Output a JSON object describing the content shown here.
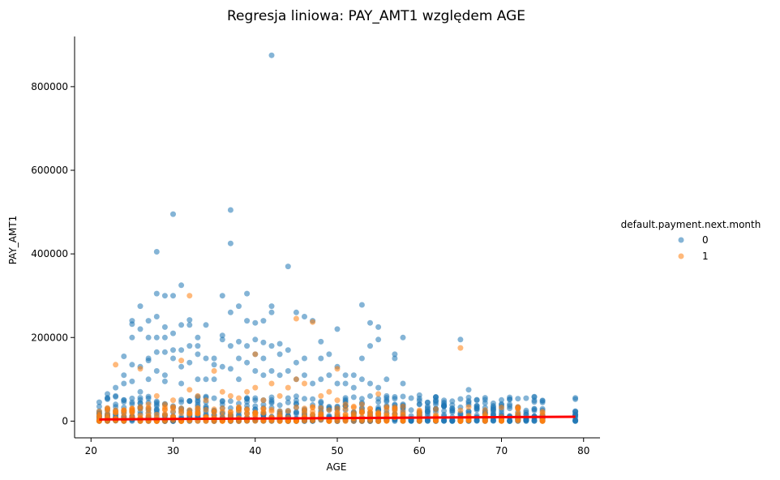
{
  "chart_data": {
    "type": "scatter",
    "title": "Regresja liniowa: PAY_AMT1 względem AGE",
    "xlabel": "AGE",
    "ylabel": "PAY_AMT1",
    "xlim": [
      18,
      82
    ],
    "ylim": [
      -40000,
      920000
    ],
    "xticks": [
      20,
      30,
      40,
      50,
      60,
      70,
      80
    ],
    "yticks": [
      0,
      200000,
      400000,
      600000,
      800000
    ],
    "legend": {
      "title": "default.payment.next.month",
      "placement": "right"
    },
    "colors": {
      "series0": "#1f77b4",
      "series1": "#ff7f0e",
      "regression": "#ff0000"
    },
    "series": [
      {
        "name": "0",
        "x": [
          21,
          21,
          22,
          22,
          22,
          23,
          23,
          23,
          24,
          24,
          24,
          24,
          25,
          25,
          25,
          25,
          25,
          25,
          26,
          26,
          26,
          26,
          27,
          27,
          27,
          27,
          27,
          28,
          28,
          28,
          28,
          28,
          28,
          29,
          29,
          29,
          29,
          29,
          29,
          30,
          30,
          30,
          30,
          30,
          31,
          31,
          31,
          31,
          31,
          32,
          32,
          32,
          32,
          33,
          33,
          33,
          33,
          34,
          34,
          34,
          35,
          35,
          35,
          36,
          36,
          36,
          36,
          37,
          37,
          37,
          37,
          37,
          38,
          38,
          38,
          38,
          39,
          39,
          39,
          39,
          40,
          40,
          40,
          40,
          41,
          41,
          41,
          41,
          42,
          42,
          42,
          42,
          42,
          43,
          43,
          43,
          44,
          44,
          44,
          45,
          45,
          45,
          46,
          46,
          46,
          47,
          47,
          48,
          48,
          48,
          49,
          49,
          50,
          50,
          50,
          51,
          51,
          52,
          52,
          53,
          53,
          53,
          54,
          54,
          54,
          55,
          55,
          55,
          56,
          56,
          57,
          57,
          58,
          58,
          59,
          60,
          60,
          61,
          62,
          62,
          63,
          63,
          64,
          65,
          66,
          66,
          67,
          68,
          69,
          70,
          71,
          72,
          73,
          74,
          75,
          79
        ],
        "y": [
          10000,
          20000,
          30000,
          15000,
          65000,
          40000,
          60000,
          80000,
          50000,
          90000,
          110000,
          155000,
          45000,
          95000,
          135000,
          200000,
          232000,
          240000,
          70000,
          130000,
          220000,
          275000,
          100000,
          145000,
          200000,
          240000,
          150000,
          120000,
          165000,
          200000,
          250000,
          305000,
          405000,
          110000,
          165000,
          200000,
          225000,
          300000,
          95000,
          150000,
          170000,
          210000,
          300000,
          495000,
          130000,
          170000,
          230000,
          325000,
          90000,
          140000,
          180000,
          230000,
          242000,
          100000,
          160000,
          200000,
          180000,
          100000,
          150000,
          230000,
          100000,
          135000,
          150000,
          130000,
          195000,
          205000,
          300000,
          125000,
          180000,
          260000,
          425000,
          505000,
          100000,
          150000,
          190000,
          275000,
          140000,
          180000,
          240000,
          305000,
          120000,
          160000,
          195000,
          235000,
          110000,
          150000,
          188000,
          240000,
          120000,
          180000,
          260000,
          275000,
          875000,
          110000,
          160000,
          185000,
          120000,
          170000,
          370000,
          100000,
          140000,
          260000,
          110000,
          150000,
          250000,
          90000,
          240000,
          100000,
          150000,
          190000,
          110000,
          160000,
          90000,
          130000,
          220000,
          90000,
          110000,
          80000,
          110000,
          100000,
          150000,
          278000,
          90000,
          180000,
          235000,
          80000,
          195000,
          225000,
          60000,
          100000,
          150000,
          160000,
          90000,
          200000,
          55000,
          40000,
          62000,
          45000,
          50000,
          40000,
          35000,
          45000,
          30000,
          195000,
          48000,
          75000,
          30000,
          20000,
          15000,
          12000,
          10000,
          8000,
          6000,
          9000,
          5000,
          16000
        ]
      },
      {
        "name": "1",
        "x": [
          21,
          22,
          23,
          23,
          24,
          25,
          26,
          27,
          28,
          29,
          30,
          31,
          32,
          32,
          33,
          34,
          35,
          36,
          37,
          38,
          39,
          40,
          40,
          41,
          42,
          43,
          44,
          45,
          45,
          46,
          47,
          48,
          49,
          50,
          50,
          51,
          52,
          53,
          54,
          55,
          56,
          57,
          58,
          60,
          62,
          65,
          66,
          68,
          70,
          72,
          75
        ],
        "y": [
          5000,
          12000,
          20000,
          135000,
          25000,
          30000,
          125000,
          40000,
          60000,
          40000,
          50000,
          145000,
          75000,
          300000,
          60000,
          50000,
          120000,
          70000,
          60000,
          55000,
          70000,
          160000,
          80000,
          50000,
          90000,
          60000,
          80000,
          245000,
          100000,
          90000,
          237000,
          60000,
          70000,
          125000,
          50000,
          40000,
          35000,
          40000,
          30000,
          65000,
          30000,
          25000,
          35000,
          15000,
          15000,
          175000,
          10000,
          8000,
          5000,
          5000,
          3000
        ]
      }
    ],
    "regression": {
      "x": [
        21,
        79
      ],
      "y": [
        4000,
        10500
      ]
    }
  }
}
